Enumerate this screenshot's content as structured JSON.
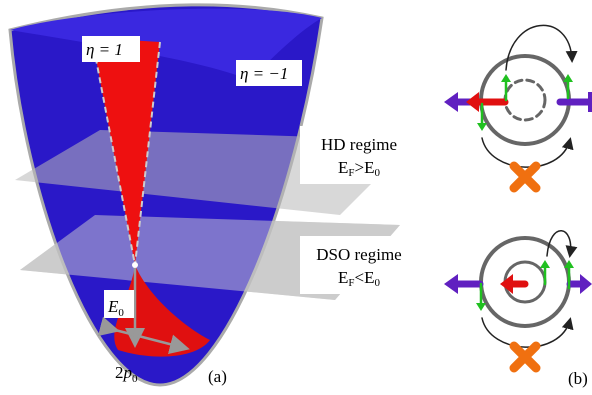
{
  "panel_a": {
    "eta_plus": "η = 1",
    "eta_minus": "η = −1",
    "energy_label": [
      "E",
      "0"
    ],
    "momentum_label": [
      "2",
      "p",
      "0"
    ],
    "caption": "(a)"
  },
  "panel_b": {
    "hd": {
      "title": "HD regime",
      "condition": [
        "E",
        "F",
        ">E",
        "0"
      ]
    },
    "dso": {
      "title": "DSO regime",
      "condition": [
        "E",
        "F",
        "<E",
        "0"
      ]
    },
    "caption": "(b)"
  }
}
